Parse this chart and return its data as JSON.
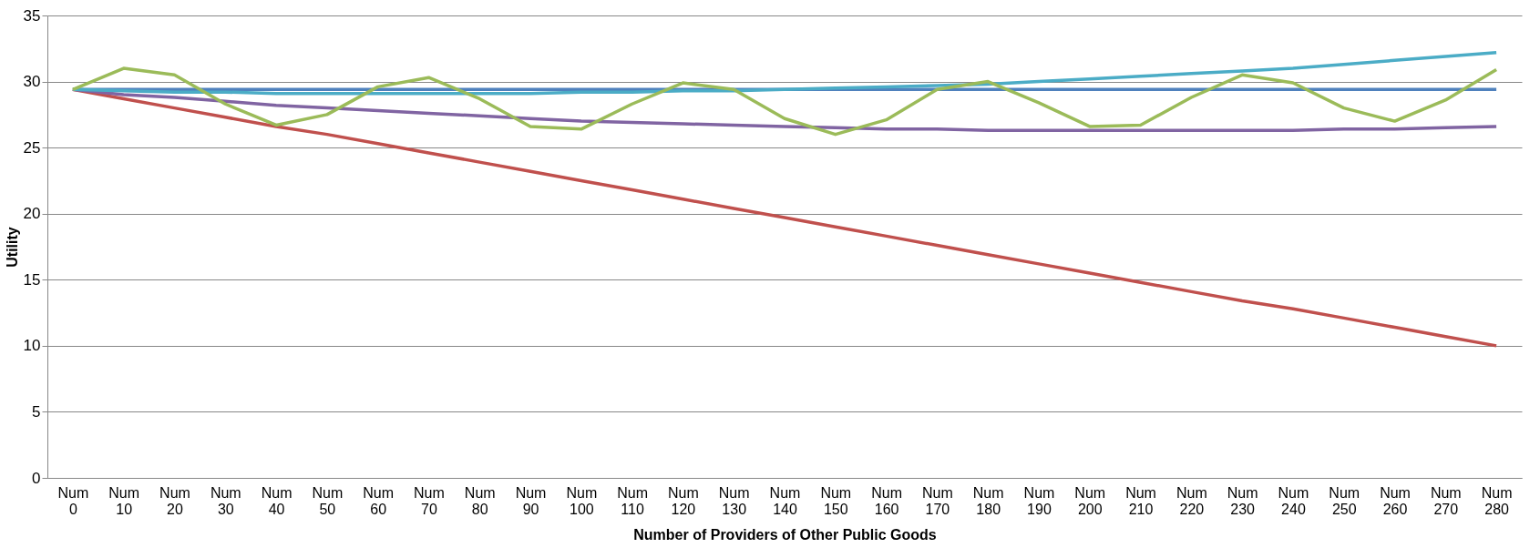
{
  "chart_data": {
    "type": "line",
    "xlabel": "Number of Providers of Other Public Goods",
    "ylabel": "Utility",
    "categories": [
      "Num 0",
      "Num 10",
      "Num 20",
      "Num 30",
      "Num 40",
      "Num 50",
      "Num 60",
      "Num 70",
      "Num 80",
      "Num 90",
      "Num 100",
      "Num 110",
      "Num 120",
      "Num 130",
      "Num 140",
      "Num 150",
      "Num 160",
      "Num 170",
      "Num 180",
      "Num 190",
      "Num 200",
      "Num 210",
      "Num 220",
      "Num 230",
      "Num 240",
      "Num 250",
      "Num 260",
      "Num 270",
      "Num 280"
    ],
    "ylim": [
      0,
      35
    ],
    "yticks": [
      0,
      5,
      10,
      15,
      20,
      25,
      30,
      35
    ],
    "grid": "y",
    "legend": false,
    "marker": "none",
    "line_style": "solid",
    "series": [
      {
        "color": "#4f81bd",
        "values": [
          29.4,
          29.4,
          29.4,
          29.4,
          29.4,
          29.4,
          29.4,
          29.4,
          29.4,
          29.4,
          29.4,
          29.4,
          29.4,
          29.4,
          29.4,
          29.4,
          29.4,
          29.4,
          29.4,
          29.4,
          29.4,
          29.4,
          29.4,
          29.4,
          29.4,
          29.4,
          29.4,
          29.4,
          29.4
        ]
      },
      {
        "color": "#c0504d",
        "values": [
          29.4,
          28.7,
          28.0,
          27.3,
          26.6,
          26.0,
          25.3,
          24.6,
          23.9,
          23.2,
          22.5,
          21.8,
          21.1,
          20.4,
          19.7,
          19.0,
          18.3,
          17.6,
          16.9,
          16.2,
          15.5,
          14.8,
          14.1,
          13.4,
          12.8,
          12.1,
          11.4,
          10.7,
          10.0
        ]
      },
      {
        "color": "#8064a2",
        "values": [
          29.4,
          29.0,
          28.8,
          28.5,
          28.2,
          28.0,
          27.8,
          27.6,
          27.4,
          27.2,
          27.0,
          26.9,
          26.8,
          26.7,
          26.6,
          26.5,
          26.4,
          26.4,
          26.3,
          26.3,
          26.3,
          26.3,
          26.3,
          26.3,
          26.3,
          26.4,
          26.4,
          26.5,
          26.6
        ]
      },
      {
        "color": "#4bacc6",
        "values": [
          29.4,
          29.3,
          29.2,
          29.2,
          29.1,
          29.1,
          29.1,
          29.1,
          29.1,
          29.1,
          29.2,
          29.2,
          29.3,
          29.3,
          29.4,
          29.5,
          29.6,
          29.7,
          29.8,
          30.0,
          30.2,
          30.4,
          30.6,
          30.8,
          31.0,
          31.3,
          31.6,
          31.9,
          32.2
        ]
      },
      {
        "color": "#9bbb59",
        "values": [
          29.4,
          31.0,
          30.5,
          28.3,
          26.7,
          27.5,
          29.6,
          30.3,
          28.7,
          26.6,
          26.4,
          28.3,
          29.9,
          29.4,
          27.2,
          26.0,
          27.1,
          29.4,
          30.0,
          28.4,
          26.6,
          26.7,
          28.8,
          30.5,
          29.9,
          28.0,
          27.0,
          28.6,
          30.9
        ]
      }
    ]
  }
}
